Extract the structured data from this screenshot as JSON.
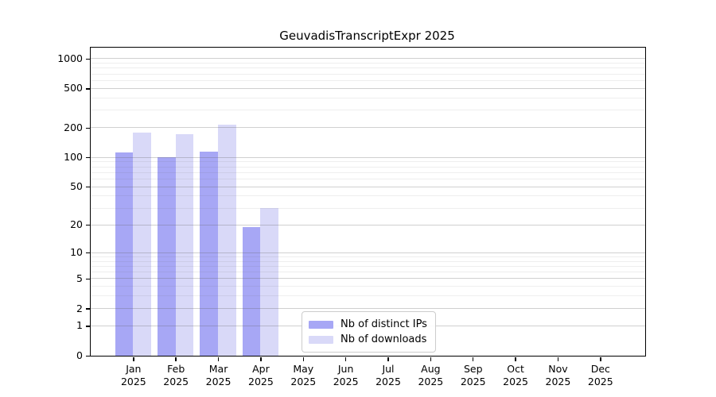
{
  "chart_data": {
    "type": "bar",
    "title": "GeuvadisTranscriptExpr 2025",
    "subtitle": "",
    "xlabel": "",
    "ylabel": "",
    "year_label": "2025",
    "categories": [
      "Jan",
      "Feb",
      "Mar",
      "Apr",
      "May",
      "Jun",
      "Jul",
      "Aug",
      "Sep",
      "Oct",
      "Nov",
      "Dec"
    ],
    "series": [
      {
        "name": "Nb of distinct IPs",
        "color": "#a7a7f5",
        "values": [
          112,
          100,
          114,
          19,
          0,
          0,
          0,
          0,
          0,
          0,
          0,
          0
        ]
      },
      {
        "name": "Nb of downloads",
        "color": "#d9d9f8",
        "values": [
          178,
          171,
          216,
          30,
          0,
          0,
          0,
          0,
          0,
          0,
          0,
          0
        ]
      }
    ],
    "yscale": "log10(1+v)",
    "ytick_labels": [
      "0",
      "1",
      "2",
      "5",
      "10",
      "20",
      "50",
      "100",
      "200",
      "500",
      "1000"
    ],
    "yticks": [
      0,
      1,
      2,
      5,
      10,
      20,
      50,
      100,
      200,
      500,
      1000
    ],
    "minor_gridline_values": [
      3,
      4,
      6,
      7,
      8,
      9,
      30,
      40,
      60,
      70,
      80,
      90,
      300,
      400,
      600,
      700,
      800,
      900
    ],
    "ymax": 1293,
    "xlim": [
      -1,
      12.0625
    ],
    "bar_width_units": 0.425,
    "grid_on": true,
    "major_grid_color": "rgba(100,100,100,0.30)",
    "minor_grid_color": "rgba(100,100,100,0.11)",
    "legend_position": "lower-center"
  },
  "legend": {
    "items": [
      {
        "label": "Nb of distinct IPs"
      },
      {
        "label": "Nb of downloads"
      }
    ]
  }
}
